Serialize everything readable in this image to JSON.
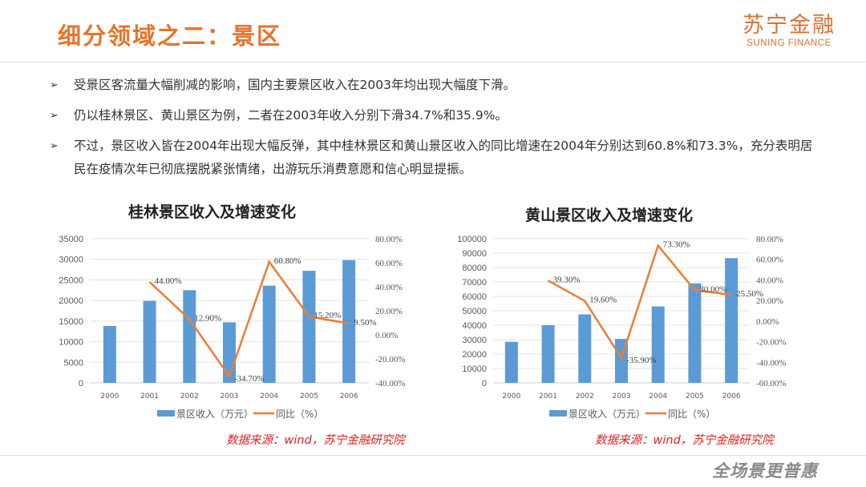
{
  "header": {
    "title": "细分领域之二：景区",
    "logo_cn": "苏宁金融",
    "logo_en": "SUNING FINANCE"
  },
  "bullets": [
    "受景区客流量大幅削减的影响，国内主要景区收入在2003年均出现大幅度下滑。",
    "仍以桂林景区、黄山景区为例，二者在2003年收入分别下滑34.7%和35.9%。",
    "不过，景区收入皆在2004年出现大幅反弹，其中桂林景区和黄山景区收入的同比增速在2004年分别达到60.8%和73.3%，充分表明居民在疫情次年已彻底摆脱紧张情绪，出游玩乐消费意愿和信心明显提振。"
  ],
  "bullet_icon": "arrow-right-icon",
  "colors": {
    "accent": "#e8732a",
    "bar": "#5b9bd5",
    "line": "#ed7d31",
    "source": "#e02020"
  },
  "chart_data": [
    {
      "type": "bar+line",
      "title": "桂林景区收入及增速变化",
      "categories": [
        "2000",
        "2001",
        "2002",
        "2003",
        "2004",
        "2005",
        "2006"
      ],
      "series": [
        {
          "name": "景区收入（万元）",
          "type": "bar",
          "axis": "left",
          "values": [
            13800,
            19900,
            22500,
            14700,
            23600,
            27200,
            29800
          ]
        },
        {
          "name": "同比（%）",
          "type": "line",
          "axis": "right",
          "values": [
            null,
            44.0,
            12.9,
            -34.7,
            60.8,
            15.2,
            9.5
          ],
          "labels": [
            "",
            "44.00%",
            "12.90%",
            "-34.70%",
            "60.80%",
            "15.20%",
            "9.50%"
          ]
        }
      ],
      "ylim_left": [
        0,
        35000
      ],
      "yticks_left": [
        "0",
        "5000",
        "10000",
        "15000",
        "20000",
        "25000",
        "30000",
        "35000"
      ],
      "ylim_right": [
        -40,
        80
      ],
      "yticks_right": [
        "-40.00%",
        "-20.00%",
        "0.00%",
        "20.00%",
        "40.00%",
        "60.00%",
        "80.00%"
      ],
      "legend": "bottom",
      "grid": true,
      "source": "数据来源：wind，苏宁金融研究院"
    },
    {
      "type": "bar+line",
      "title": "黄山景区收入及增速变化",
      "categories": [
        "2000",
        "2001",
        "2002",
        "2003",
        "2004",
        "2005",
        "2006"
      ],
      "series": [
        {
          "name": "景区收入（万元）",
          "type": "bar",
          "axis": "left",
          "values": [
            28500,
            40000,
            47500,
            30500,
            53000,
            69000,
            86500
          ]
        },
        {
          "name": "同比（%）",
          "type": "line",
          "axis": "right",
          "values": [
            null,
            39.3,
            19.6,
            -35.9,
            73.3,
            30.0,
            25.5
          ],
          "labels": [
            "",
            "39.30%",
            "19.60%",
            "-35.90%",
            "73.30%",
            "30.00%",
            "25.50%"
          ]
        }
      ],
      "ylim_left": [
        0,
        100000
      ],
      "yticks_left": [
        "0",
        "10000",
        "20000",
        "30000",
        "40000",
        "50000",
        "60000",
        "70000",
        "80000",
        "90000",
        "100000"
      ],
      "ylim_right": [
        -60,
        80
      ],
      "yticks_right": [
        "-60.00%",
        "-40.00%",
        "-20.00%",
        "0.00%",
        "20.00%",
        "40.00%",
        "60.00%",
        "80.00%"
      ],
      "legend": "bottom",
      "grid": true,
      "source": "数据来源：wind，苏宁金融研究院"
    }
  ],
  "footer": {
    "slogan": "全场景更普惠"
  }
}
